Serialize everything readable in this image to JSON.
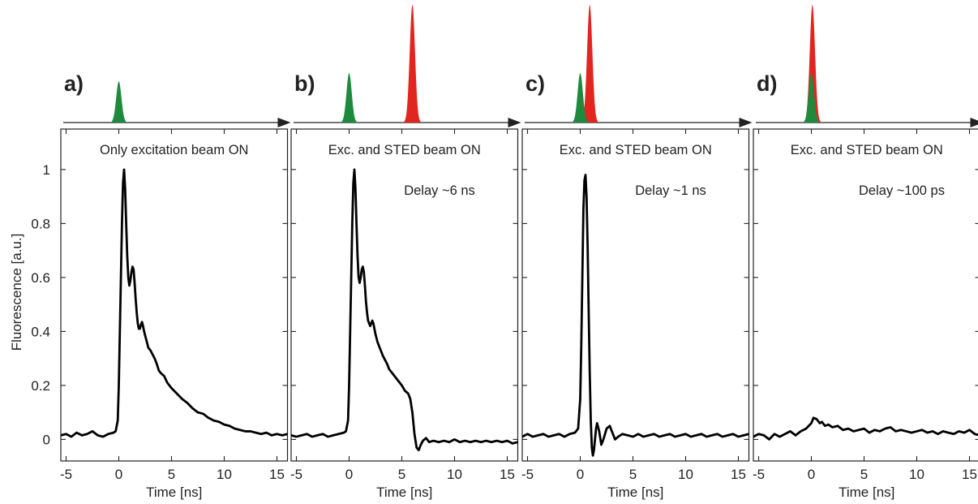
{
  "chart_data": {
    "type": "line",
    "ylabel": "Fluorescence [a.u.]",
    "xlabel": "Time [ns]",
    "xlim": [
      -5.5,
      16
    ],
    "ylim": [
      -0.08,
      1.15
    ],
    "x_ticks": [
      -5,
      0,
      5,
      10,
      15
    ],
    "y_ticks": [
      0,
      0.2,
      0.4,
      0.6,
      0.8,
      1
    ],
    "y_tick_labels": [
      "0",
      "0.2",
      "0.4",
      "0.6",
      "0.8",
      "1"
    ],
    "colors": {
      "trace": "#000000",
      "excitation_pulse": "#1e8a3e",
      "sted_pulse": "#e0261f",
      "frame": "#222222"
    },
    "panels": [
      {
        "letter": "a)",
        "annotation": "Only excitation beam ON",
        "delay": "",
        "pulses": {
          "excitation": {
            "t": 0.0,
            "height": 0.35
          },
          "sted": null
        },
        "series": [
          {
            "x": [
              -5.5,
              -5,
              -4.5,
              -4,
              -3.5,
              -3,
              -2.5,
              -2,
              -1.5,
              -1,
              -0.5,
              -0.3,
              -0.1,
              0,
              0.1,
              0.2,
              0.3,
              0.4,
              0.5,
              0.6,
              0.7,
              0.8,
              0.9,
              1.0,
              1.1,
              1.2,
              1.3,
              1.4,
              1.5,
              1.6,
              1.7,
              1.8,
              1.9,
              2.0,
              2.1,
              2.2,
              2.3,
              2.4,
              2.5,
              2.6,
              2.7,
              2.8,
              2.9,
              3.0,
              3.2,
              3.4,
              3.6,
              3.8,
              4.0,
              4.3,
              4.6,
              5.0,
              5.5,
              6.0,
              6.5,
              7.0,
              7.5,
              8.0,
              8.5,
              9.0,
              9.5,
              10.0,
              10.5,
              11.0,
              11.5,
              12.0,
              12.5,
              13.0,
              13.5,
              14.0,
              14.5,
              15.0,
              15.5,
              16.0
            ],
            "y": [
              0.015,
              0.02,
              0.01,
              0.025,
              0.015,
              0.02,
              0.03,
              0.015,
              0.01,
              0.02,
              0.025,
              0.03,
              0.07,
              0.2,
              0.4,
              0.6,
              0.8,
              0.95,
              1.0,
              0.93,
              0.8,
              0.68,
              0.6,
              0.57,
              0.59,
              0.62,
              0.64,
              0.63,
              0.58,
              0.52,
              0.47,
              0.43,
              0.41,
              0.41,
              0.425,
              0.435,
              0.42,
              0.4,
              0.385,
              0.37,
              0.355,
              0.34,
              0.335,
              0.33,
              0.315,
              0.3,
              0.28,
              0.255,
              0.245,
              0.235,
              0.21,
              0.19,
              0.17,
              0.15,
              0.135,
              0.115,
              0.1,
              0.095,
              0.08,
              0.07,
              0.065,
              0.055,
              0.05,
              0.04,
              0.035,
              0.03,
              0.03,
              0.025,
              0.02,
              0.025,
              0.015,
              0.02,
              0.015,
              0.02
            ]
          }
        ]
      },
      {
        "letter": "b)",
        "annotation": "Exc. and STED beam ON",
        "delay": "Delay ~6 ns",
        "pulses": {
          "excitation": {
            "t": 0.0,
            "height": 0.42
          },
          "sted": {
            "t": 6.0,
            "height": 1.0
          }
        },
        "series": [
          {
            "x": [
              -5.5,
              -5,
              -4.5,
              -4,
              -3.5,
              -3,
              -2.5,
              -2,
              -1.5,
              -1,
              -0.5,
              -0.3,
              -0.1,
              0,
              0.1,
              0.2,
              0.3,
              0.4,
              0.5,
              0.6,
              0.7,
              0.8,
              0.9,
              1.0,
              1.1,
              1.2,
              1.3,
              1.4,
              1.5,
              1.6,
              1.7,
              1.8,
              1.9,
              2.0,
              2.1,
              2.2,
              2.3,
              2.4,
              2.5,
              2.6,
              2.7,
              2.8,
              2.9,
              3.0,
              3.2,
              3.4,
              3.6,
              3.8,
              4.0,
              4.3,
              4.6,
              5.0,
              5.3,
              5.6,
              5.8,
              6.0,
              6.2,
              6.4,
              6.6,
              6.8,
              7.0,
              7.3,
              7.6,
              8.0,
              8.5,
              9.0,
              9.5,
              10.0,
              10.5,
              11.0,
              11.5,
              12.0,
              12.5,
              13.0,
              13.5,
              14.0,
              14.5,
              15.0,
              15.5,
              16.0
            ],
            "y": [
              0.015,
              0.01,
              0.015,
              0.02,
              0.01,
              0.015,
              0.02,
              0.01,
              0.015,
              0.02,
              0.025,
              0.03,
              0.07,
              0.2,
              0.4,
              0.6,
              0.8,
              0.95,
              1.0,
              0.93,
              0.8,
              0.68,
              0.6,
              0.58,
              0.6,
              0.63,
              0.64,
              0.62,
              0.57,
              0.51,
              0.47,
              0.44,
              0.43,
              0.42,
              0.43,
              0.44,
              0.43,
              0.41,
              0.39,
              0.375,
              0.36,
              0.35,
              0.34,
              0.33,
              0.31,
              0.295,
              0.28,
              0.26,
              0.25,
              0.235,
              0.22,
              0.2,
              0.18,
              0.17,
              0.15,
              0.1,
              0.02,
              -0.03,
              -0.04,
              -0.02,
              -0.005,
              0.005,
              -0.01,
              -0.005,
              -0.01,
              -0.005,
              -0.01,
              0.0,
              -0.01,
              -0.005,
              -0.01,
              -0.005,
              -0.01,
              -0.005,
              -0.01,
              -0.005,
              -0.01,
              -0.005,
              -0.015,
              -0.01
            ]
          }
        ]
      },
      {
        "letter": "c)",
        "annotation": "Exc. and STED beam ON",
        "delay": "Delay ~1 ns",
        "pulses": {
          "excitation": {
            "t": 0.0,
            "height": 0.42
          },
          "sted": {
            "t": 0.9,
            "height": 1.0
          }
        },
        "series": [
          {
            "x": [
              -5.5,
              -5,
              -4.5,
              -4,
              -3.5,
              -3,
              -2.5,
              -2,
              -1.5,
              -1,
              -0.5,
              -0.2,
              0,
              0.1,
              0.2,
              0.3,
              0.4,
              0.5,
              0.6,
              0.7,
              0.8,
              0.9,
              1.0,
              1.1,
              1.2,
              1.3,
              1.4,
              1.5,
              1.6,
              1.8,
              2.0,
              2.2,
              2.5,
              2.8,
              3.0,
              3.3,
              3.6,
              4.0,
              4.5,
              5.0,
              5.5,
              6.0,
              6.5,
              7.0,
              7.5,
              8.0,
              8.5,
              9.0,
              9.5,
              10.0,
              10.5,
              11.0,
              11.5,
              12.0,
              12.5,
              13.0,
              13.5,
              14.0,
              14.5,
              15.0,
              15.5,
              16.0
            ],
            "y": [
              0.01,
              0.02,
              0.01,
              0.015,
              0.02,
              0.01,
              0.015,
              0.02,
              0.01,
              0.02,
              0.025,
              0.04,
              0.15,
              0.35,
              0.6,
              0.85,
              0.96,
              0.98,
              0.9,
              0.72,
              0.48,
              0.25,
              0.07,
              -0.03,
              -0.06,
              -0.04,
              0.0,
              0.04,
              0.06,
              0.03,
              -0.02,
              0.0,
              0.04,
              0.05,
              0.03,
              0.0,
              0.01,
              0.02,
              0.015,
              0.01,
              0.02,
              0.01,
              0.015,
              0.02,
              0.01,
              0.015,
              0.02,
              0.01,
              0.015,
              0.02,
              0.01,
              0.015,
              0.02,
              0.01,
              0.015,
              0.02,
              0.01,
              0.015,
              0.02,
              0.01,
              0.015,
              0.02
            ]
          }
        ]
      },
      {
        "letter": "d)",
        "annotation": "Exc. and STED beam ON",
        "delay": "Delay ~100 ps",
        "pulses": {
          "excitation": {
            "t": 0.0,
            "height": 0.42
          },
          "sted": {
            "t": 0.1,
            "height": 1.0
          }
        },
        "series": [
          {
            "x": [
              -5.5,
              -5,
              -4.5,
              -4,
              -3.5,
              -3,
              -2.5,
              -2,
              -1.5,
              -1,
              -0.5,
              0,
              0.2,
              0.5,
              0.8,
              1.0,
              1.3,
              1.6,
              2.0,
              2.5,
              3.0,
              3.5,
              4.0,
              4.5,
              5.0,
              5.5,
              6.0,
              6.5,
              7.0,
              7.5,
              8.0,
              8.5,
              9.0,
              9.5,
              10.0,
              10.5,
              11.0,
              11.5,
              12.0,
              12.5,
              13.0,
              13.5,
              14.0,
              14.5,
              15.0,
              15.5,
              16.0
            ],
            "y": [
              0.01,
              0.02,
              0.015,
              0.0,
              0.02,
              0.01,
              0.02,
              0.03,
              0.015,
              0.03,
              0.04,
              0.06,
              0.08,
              0.075,
              0.06,
              0.065,
              0.05,
              0.055,
              0.045,
              0.05,
              0.035,
              0.04,
              0.03,
              0.035,
              0.04,
              0.025,
              0.035,
              0.03,
              0.04,
              0.045,
              0.03,
              0.035,
              0.03,
              0.025,
              0.03,
              0.035,
              0.025,
              0.03,
              0.02,
              0.03,
              0.025,
              0.02,
              0.03,
              0.025,
              0.035,
              0.02,
              0.015
            ]
          }
        ]
      }
    ]
  }
}
